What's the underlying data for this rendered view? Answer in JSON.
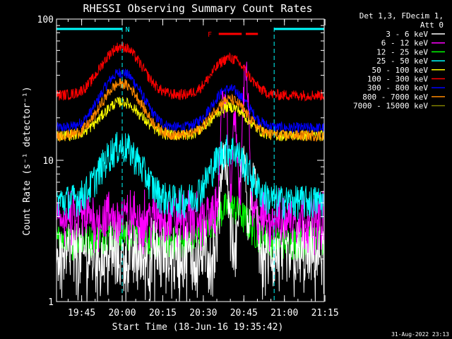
{
  "chart_data": {
    "type": "line",
    "title": "RHESSI Observing Summary Count Rates",
    "xlabel": "Start Time (18-Jun-16 19:35:42)",
    "ylabel": "Count Rate (s⁻¹ detector⁻¹)",
    "yscale": "log",
    "ylim": [
      1,
      100
    ],
    "xlim_minutes": [
      0,
      99
    ],
    "x_ticks": [
      {
        "label": "19:45",
        "t": 9.3
      },
      {
        "label": "20:00",
        "t": 24.3
      },
      {
        "label": "20:15",
        "t": 39.3
      },
      {
        "label": "20:30",
        "t": 54.3
      },
      {
        "label": "20:45",
        "t": 69.3
      },
      {
        "label": "21:00",
        "t": 84.3
      },
      {
        "label": "21:15",
        "t": 99.3
      }
    ],
    "y_ticks": [
      {
        "label": "1",
        "value": 1
      },
      {
        "label": "10",
        "value": 10
      },
      {
        "label": "100",
        "value": 100
      }
    ],
    "legend_header": [
      "Det 1,3, FDecim 1,",
      "Att 0"
    ],
    "series": [
      {
        "name": "3 - 6 keV",
        "color": "#ffffff",
        "base": 2.2,
        "peak1": 0.6,
        "peak2": 9
      },
      {
        "name": "6 - 12 keV",
        "color": "#ff00ff",
        "base": 4.0,
        "peak1": 0.5,
        "peak2": 40
      },
      {
        "name": "12 - 25 keV",
        "color": "#00ff00",
        "base": 2.7,
        "peak1": 0.4,
        "peak2": 2
      },
      {
        "name": "25 - 50 keV",
        "color": "#00ffff",
        "base": 5.2,
        "peak1": 7.5,
        "peak2": 7
      },
      {
        "name": "50 - 100 keV",
        "color": "#ffff00",
        "base": 15,
        "peak1": 11,
        "peak2": 9
      },
      {
        "name": "100 - 300 keV",
        "color": "#ff0000",
        "base": 29,
        "peak1": 35,
        "peak2": 24
      },
      {
        "name": "300 - 800 keV",
        "color": "#0000ff",
        "base": 17,
        "peak1": 25,
        "peak2": 15
      },
      {
        "name": "800 - 7000 keV",
        "color": "#ff8800",
        "base": 15,
        "peak1": 20,
        "peak2": 12
      },
      {
        "name": "7000 - 15000 keV",
        "color": "#808000",
        "base": 2.5,
        "peak1": 1,
        "peak2": 1
      }
    ],
    "annotations": {
      "night_label": "N",
      "flare_label": "F",
      "night_bars": [
        [
          0,
          24.3
        ],
        [
          80.5,
          99
        ]
      ],
      "flare_bars": [
        [
          60,
          68.5
        ],
        [
          70,
          74.5
        ]
      ],
      "dashed_lines": [
        24.3,
        80.5,
        99
      ]
    }
  },
  "timestamp": "31-Aug-2022 23:13"
}
